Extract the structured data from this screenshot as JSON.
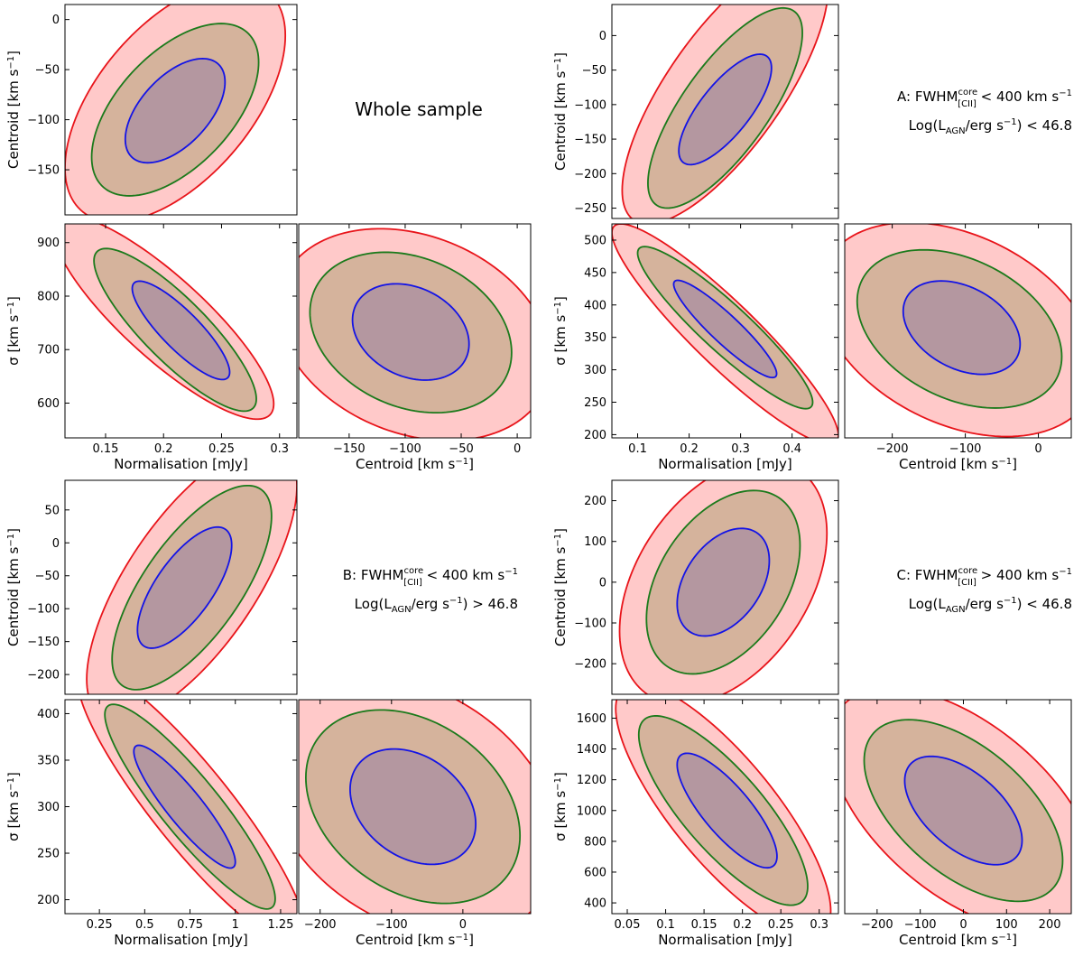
{
  "figure": {
    "colors": {
      "c3_line": "#e8141a",
      "c3_fill": "#ffc9c9",
      "c2_line": "#1b7a1b",
      "c2_fill": "#d5b39c",
      "c1_line": "#1313e6",
      "c1_fill": "#b497a0"
    },
    "corner_labels": [
      {
        "text": "Whole sample"
      },
      {
        "line1": "A: FWHM",
        "sup": "core",
        "sub": "[CII]",
        "tail": " < 400 km s",
        "tail_sup": "−1",
        "line2_pre": "Log(L",
        "line2_sub": "AGN",
        "line2_mid": "/erg s",
        "line2_sup": "−1",
        "line2_post": ") < 46.8"
      },
      {
        "line1": "B: FWHM",
        "sup": "core",
        "sub": "[CII]",
        "tail": " < 400 km s",
        "tail_sup": "−1",
        "line2_pre": "Log(L",
        "line2_sub": "AGN",
        "line2_mid": "/erg s",
        "line2_sup": "−1",
        "line2_post": ") > 46.8"
      },
      {
        "line1": "C: FWHM",
        "sup": "core",
        "sub": "[CII]",
        "tail": " > 400 km s",
        "tail_sup": "−1",
        "line2_pre": "Log(L",
        "line2_sub": "AGN",
        "line2_mid": "/erg s",
        "line2_sup": "−1",
        "line2_post": ") < 46.8"
      }
    ]
  },
  "chart_data": [
    {
      "type": "contour",
      "id": "whole-centroid-vs-norm",
      "group": "Whole sample",
      "xlabel": "",
      "ylabel": "Centroid [km s⁻¹]",
      "xlim": [
        0.115,
        0.315
      ],
      "ylim": [
        -195,
        15
      ],
      "xticks": [],
      "yticks": [
        0,
        -50,
        -100,
        -150
      ],
      "ellipses": [
        {
          "level": 3,
          "cx": 0.21,
          "cy": -82,
          "sx": 0.095,
          "sy": 120,
          "rho": 0.55
        },
        {
          "level": 2,
          "cx": 0.21,
          "cy": -90,
          "sx": 0.072,
          "sy": 86,
          "rho": 0.55
        },
        {
          "level": 1,
          "cx": 0.21,
          "cy": -91,
          "sx": 0.043,
          "sy": 52,
          "rho": 0.55
        }
      ]
    },
    {
      "type": "contour",
      "id": "whole-sigma-vs-norm",
      "group": "Whole sample",
      "xlabel": "Normalisation [mJy]",
      "ylabel": "σ [km s⁻¹]",
      "xlim": [
        0.115,
        0.315
      ],
      "ylim": [
        535,
        935
      ],
      "xticks": [
        0.15,
        0.2,
        0.25,
        0.3
      ],
      "yticks": [
        600,
        700,
        800,
        900
      ],
      "ellipses": [
        {
          "level": 3,
          "cx": 0.2,
          "cy": 760,
          "sx": 0.095,
          "sy": 190,
          "rho": -0.85
        },
        {
          "level": 2,
          "cx": 0.21,
          "cy": 737,
          "sx": 0.07,
          "sy": 152,
          "rho": -0.85
        },
        {
          "level": 1,
          "cx": 0.215,
          "cy": 736,
          "sx": 0.042,
          "sy": 92,
          "rho": -0.85
        }
      ]
    },
    {
      "type": "contour",
      "id": "whole-sigma-vs-centroid",
      "group": "Whole sample",
      "xlabel": "Centroid [km s⁻¹]",
      "ylabel": "",
      "xlim": [
        -195,
        12
      ],
      "ylim": [
        535,
        935
      ],
      "xticks": [
        -150,
        -100,
        -50,
        0
      ],
      "yticks": [],
      "ellipses": [
        {
          "level": 3,
          "cx": -92,
          "cy": 728,
          "sx": 122,
          "sy": 198,
          "rho": -0.25
        },
        {
          "level": 2,
          "cx": -95,
          "cy": 732,
          "sx": 90,
          "sy": 150,
          "rho": -0.25
        },
        {
          "level": 1,
          "cx": -95,
          "cy": 733,
          "sx": 52,
          "sy": 90,
          "rho": -0.25
        }
      ]
    },
    {
      "type": "contour",
      "id": "A-centroid-vs-norm",
      "group": "A",
      "xlabel": "",
      "ylabel": "Centroid [km s⁻¹]",
      "xlim": [
        0.05,
        0.49
      ],
      "ylim": [
        -265,
        45
      ],
      "xticks": [],
      "yticks": [
        0,
        -50,
        -100,
        -150,
        -200,
        -250
      ],
      "ellipses": [
        {
          "level": 3,
          "cx": 0.27,
          "cy": -78,
          "sx": 0.2,
          "sy": 195,
          "rho": 0.75
        },
        {
          "level": 2,
          "cx": 0.27,
          "cy": -105,
          "sx": 0.15,
          "sy": 145,
          "rho": 0.75
        },
        {
          "level": 1,
          "cx": 0.27,
          "cy": -107,
          "sx": 0.09,
          "sy": 80,
          "rho": 0.75
        }
      ]
    },
    {
      "type": "contour",
      "id": "A-sigma-vs-norm",
      "group": "A",
      "xlabel": "Normalisation [mJy]",
      "ylabel": "σ [km s⁻¹]",
      "xlim": [
        0.05,
        0.49
      ],
      "ylim": [
        195,
        525
      ],
      "xticks": [
        0.1,
        0.2,
        0.3,
        0.4
      ],
      "yticks": [
        200,
        250,
        300,
        350,
        400,
        450,
        500
      ],
      "ellipses": [
        {
          "level": 3,
          "cx": 0.27,
          "cy": 355,
          "sx": 0.22,
          "sy": 170,
          "rho": -0.92
        },
        {
          "level": 2,
          "cx": 0.27,
          "cy": 365,
          "sx": 0.17,
          "sy": 125,
          "rho": -0.92
        },
        {
          "level": 1,
          "cx": 0.27,
          "cy": 363,
          "sx": 0.1,
          "sy": 75,
          "rho": -0.92
        }
      ]
    },
    {
      "type": "contour",
      "id": "A-sigma-vs-centroid",
      "group": "A",
      "xlabel": "Centroid [km s⁻¹]",
      "ylabel": "",
      "xlim": [
        -265,
        45
      ],
      "ylim": [
        195,
        525
      ],
      "xticks": [
        -200,
        -100,
        0
      ],
      "yticks": [],
      "ellipses": [
        {
          "level": 3,
          "cx": -110,
          "cy": 362,
          "sx": 190,
          "sy": 165,
          "rho": -0.35
        },
        {
          "level": 2,
          "cx": -108,
          "cy": 363,
          "sx": 140,
          "sy": 122,
          "rho": -0.35
        },
        {
          "level": 1,
          "cx": -105,
          "cy": 365,
          "sx": 80,
          "sy": 72,
          "rho": -0.35
        }
      ]
    },
    {
      "type": "contour",
      "id": "B-centroid-vs-norm",
      "group": "B",
      "xlabel": "",
      "ylabel": "Centroid [km s⁻¹]",
      "xlim": [
        0.06,
        1.34
      ],
      "ylim": [
        -230,
        95
      ],
      "xticks": [],
      "yticks": [
        50,
        0,
        -50,
        -100,
        -150,
        -200
      ],
      "ellipses": [
        {
          "level": 3,
          "cx": 0.76,
          "cy": -60,
          "sx": 0.58,
          "sy": 210,
          "rho": 0.7
        },
        {
          "level": 2,
          "cx": 0.76,
          "cy": -68,
          "sx": 0.44,
          "sy": 155,
          "rho": 0.7
        },
        {
          "level": 1,
          "cx": 0.72,
          "cy": -68,
          "sx": 0.26,
          "sy": 92,
          "rho": 0.7
        }
      ]
    },
    {
      "type": "contour",
      "id": "B-sigma-vs-norm",
      "group": "B",
      "xlabel": "Normalisation [mJy]",
      "ylabel": "σ [km s⁻¹]",
      "xlim": [
        0.06,
        1.34
      ],
      "ylim": [
        185,
        415
      ],
      "xticks": [
        0.25,
        0.5,
        0.75,
        1.0,
        1.25
      ],
      "yticks": [
        200,
        250,
        300,
        350,
        400
      ],
      "ellipses": [
        {
          "level": 3,
          "cx": 0.76,
          "cy": 300,
          "sx": 0.63,
          "sy": 150,
          "rho": -0.9
        },
        {
          "level": 2,
          "cx": 0.75,
          "cy": 300,
          "sx": 0.47,
          "sy": 110,
          "rho": -0.9
        },
        {
          "level": 1,
          "cx": 0.72,
          "cy": 300,
          "sx": 0.28,
          "sy": 66,
          "rho": -0.9
        }
      ]
    },
    {
      "type": "contour",
      "id": "B-sigma-vs-centroid",
      "group": "B",
      "xlabel": "Centroid [km s⁻¹]",
      "ylabel": "",
      "xlim": [
        -230,
        95
      ],
      "ylim": [
        185,
        415
      ],
      "xticks": [
        -200,
        -100,
        0
      ],
      "yticks": [],
      "ellipses": [
        {
          "level": 3,
          "cx": -70,
          "cy": 300,
          "sx": 205,
          "sy": 140,
          "rho": -0.3
        },
        {
          "level": 2,
          "cx": -70,
          "cy": 300,
          "sx": 150,
          "sy": 104,
          "rho": -0.3
        },
        {
          "level": 1,
          "cx": -70,
          "cy": 300,
          "sx": 88,
          "sy": 62,
          "rho": -0.3
        }
      ]
    },
    {
      "type": "contour",
      "id": "C-centroid-vs-norm",
      "group": "C",
      "xlabel": "",
      "ylabel": "Centroid [km s⁻¹]",
      "xlim": [
        0.03,
        0.325
      ],
      "ylim": [
        -275,
        250
      ],
      "xticks": [],
      "yticks": [
        200,
        100,
        0,
        -100,
        -200
      ],
      "ellipses": [
        {
          "level": 3,
          "cx": 0.175,
          "cy": 0,
          "sx": 0.135,
          "sy": 300,
          "rho": 0.4
        },
        {
          "level": 2,
          "cx": 0.175,
          "cy": 0,
          "sx": 0.1,
          "sy": 225,
          "rho": 0.4
        },
        {
          "level": 1,
          "cx": 0.175,
          "cy": 0,
          "sx": 0.06,
          "sy": 132,
          "rho": 0.4
        }
      ]
    },
    {
      "type": "contour",
      "id": "C-sigma-vs-norm",
      "group": "C",
      "xlabel": "Normalisation [mJy]",
      "ylabel": "σ [km s⁻¹]",
      "xlim": [
        0.03,
        0.325
      ],
      "ylim": [
        330,
        1720
      ],
      "xticks": [
        0.05,
        0.1,
        0.15,
        0.2,
        0.25,
        0.3
      ],
      "yticks": [
        400,
        600,
        800,
        1000,
        1200,
        1400,
        1600
      ],
      "ellipses": [
        {
          "level": 3,
          "cx": 0.175,
          "cy": 1005,
          "sx": 0.14,
          "sy": 820,
          "rho": -0.8
        },
        {
          "level": 2,
          "cx": 0.175,
          "cy": 1000,
          "sx": 0.11,
          "sy": 615,
          "rho": -0.8
        },
        {
          "level": 1,
          "cx": 0.18,
          "cy": 1000,
          "sx": 0.065,
          "sy": 372,
          "rho": -0.8
        }
      ]
    },
    {
      "type": "contour",
      "id": "C-sigma-vs-centroid",
      "group": "C",
      "xlabel": "Centroid [km s⁻¹]",
      "ylabel": "",
      "xlim": [
        -275,
        250
      ],
      "ylim": [
        330,
        1720
      ],
      "xticks": [
        -200,
        -100,
        0,
        100,
        200
      ],
      "yticks": [],
      "ellipses": [
        {
          "level": 3,
          "cx": 0,
          "cy": 1005,
          "sx": 310,
          "sy": 790,
          "rho": -0.55
        },
        {
          "level": 2,
          "cx": 0,
          "cy": 1000,
          "sx": 230,
          "sy": 590,
          "rho": -0.55
        },
        {
          "level": 1,
          "cx": 0,
          "cy": 1000,
          "sx": 136,
          "sy": 352,
          "rho": -0.55
        }
      ]
    }
  ]
}
